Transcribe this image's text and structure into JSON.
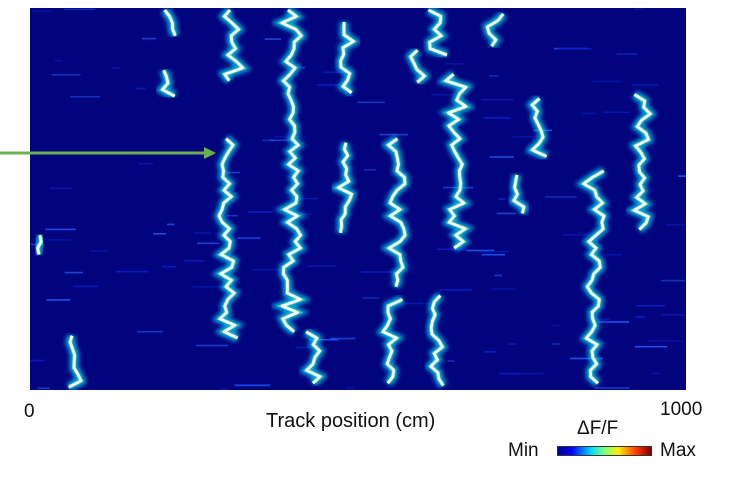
{
  "chart_data": {
    "type": "heatmap",
    "title": "",
    "xlabel": "Track position (cm)",
    "ylabel": "",
    "xlim": [
      0,
      1000
    ],
    "x_tick_labels": [
      "0",
      "1000"
    ],
    "colorbar": {
      "title": "ΔF/F",
      "min_label": "Min",
      "max_label": "Max",
      "colormap": "jet"
    },
    "annotation": {
      "type": "arrow",
      "color": "#6ab04c",
      "points_to_x": 280
    },
    "n_rows": 95,
    "place_field_traces": [
      {
        "id": "t1",
        "x_center": 15,
        "rows": [
          57,
          62
        ]
      },
      {
        "id": "t2",
        "x_center": 65,
        "rows": [
          82,
          95
        ]
      },
      {
        "id": "t3",
        "x_center": 210,
        "rows": [
          1,
          8
        ]
      },
      {
        "id": "t4",
        "x_center": 210,
        "rows": [
          16,
          24
        ]
      },
      {
        "id": "t5",
        "x_center": 300,
        "rows": [
          33,
          83
        ]
      },
      {
        "id": "t6",
        "x_center": 310,
        "rows": [
          1,
          20
        ]
      },
      {
        "id": "t7",
        "x_center": 400,
        "rows": [
          1,
          82
        ]
      },
      {
        "id": "t8",
        "x_center": 435,
        "rows": [
          81,
          95
        ]
      },
      {
        "id": "t9",
        "x_center": 480,
        "rows": [
          4,
          23
        ]
      },
      {
        "id": "t10",
        "x_center": 480,
        "rows": [
          34,
          58
        ]
      },
      {
        "id": "t11",
        "x_center": 560,
        "rows": [
          33,
          70
        ]
      },
      {
        "id": "t12",
        "x_center": 550,
        "rows": [
          73,
          95
        ]
      },
      {
        "id": "t13",
        "x_center": 590,
        "rows": [
          11,
          19
        ]
      },
      {
        "id": "t14",
        "x_center": 620,
        "rows": [
          1,
          13
        ]
      },
      {
        "id": "t15",
        "x_center": 650,
        "rows": [
          17,
          61
        ]
      },
      {
        "id": "t16",
        "x_center": 620,
        "rows": [
          72,
          95
        ]
      },
      {
        "id": "t17",
        "x_center": 710,
        "rows": [
          2,
          11
        ]
      },
      {
        "id": "t18",
        "x_center": 740,
        "rows": [
          42,
          53
        ]
      },
      {
        "id": "t19",
        "x_center": 780,
        "rows": [
          23,
          39
        ]
      },
      {
        "id": "t20",
        "x_center": 860,
        "rows": [
          41,
          95
        ]
      },
      {
        "id": "t21",
        "x_center": 930,
        "rows": [
          22,
          56
        ]
      }
    ]
  }
}
